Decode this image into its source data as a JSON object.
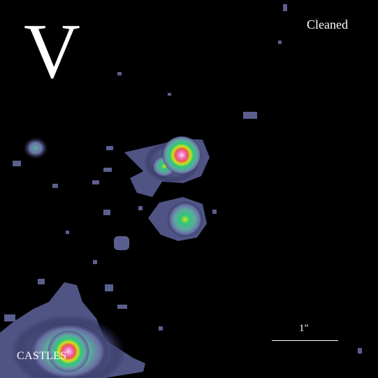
{
  "image": {
    "background_color": "#000000",
    "colormap": [
      "#1a1a3a",
      "#6a6fa5",
      "#5fa8a0",
      "#2ec77a",
      "#d6e01a",
      "#e65a4f",
      "#f06fc0",
      "#f7d6ef"
    ],
    "sources": [
      "north-source",
      "center-lens-galaxy",
      "south-source",
      "west-faint-source",
      "bright-southwest-object"
    ]
  },
  "labels": {
    "band": "V",
    "processing": "Cleaned",
    "credit": "CASTLES"
  },
  "scale_bar": {
    "label": "1\"",
    "length_arcsec": 1
  }
}
